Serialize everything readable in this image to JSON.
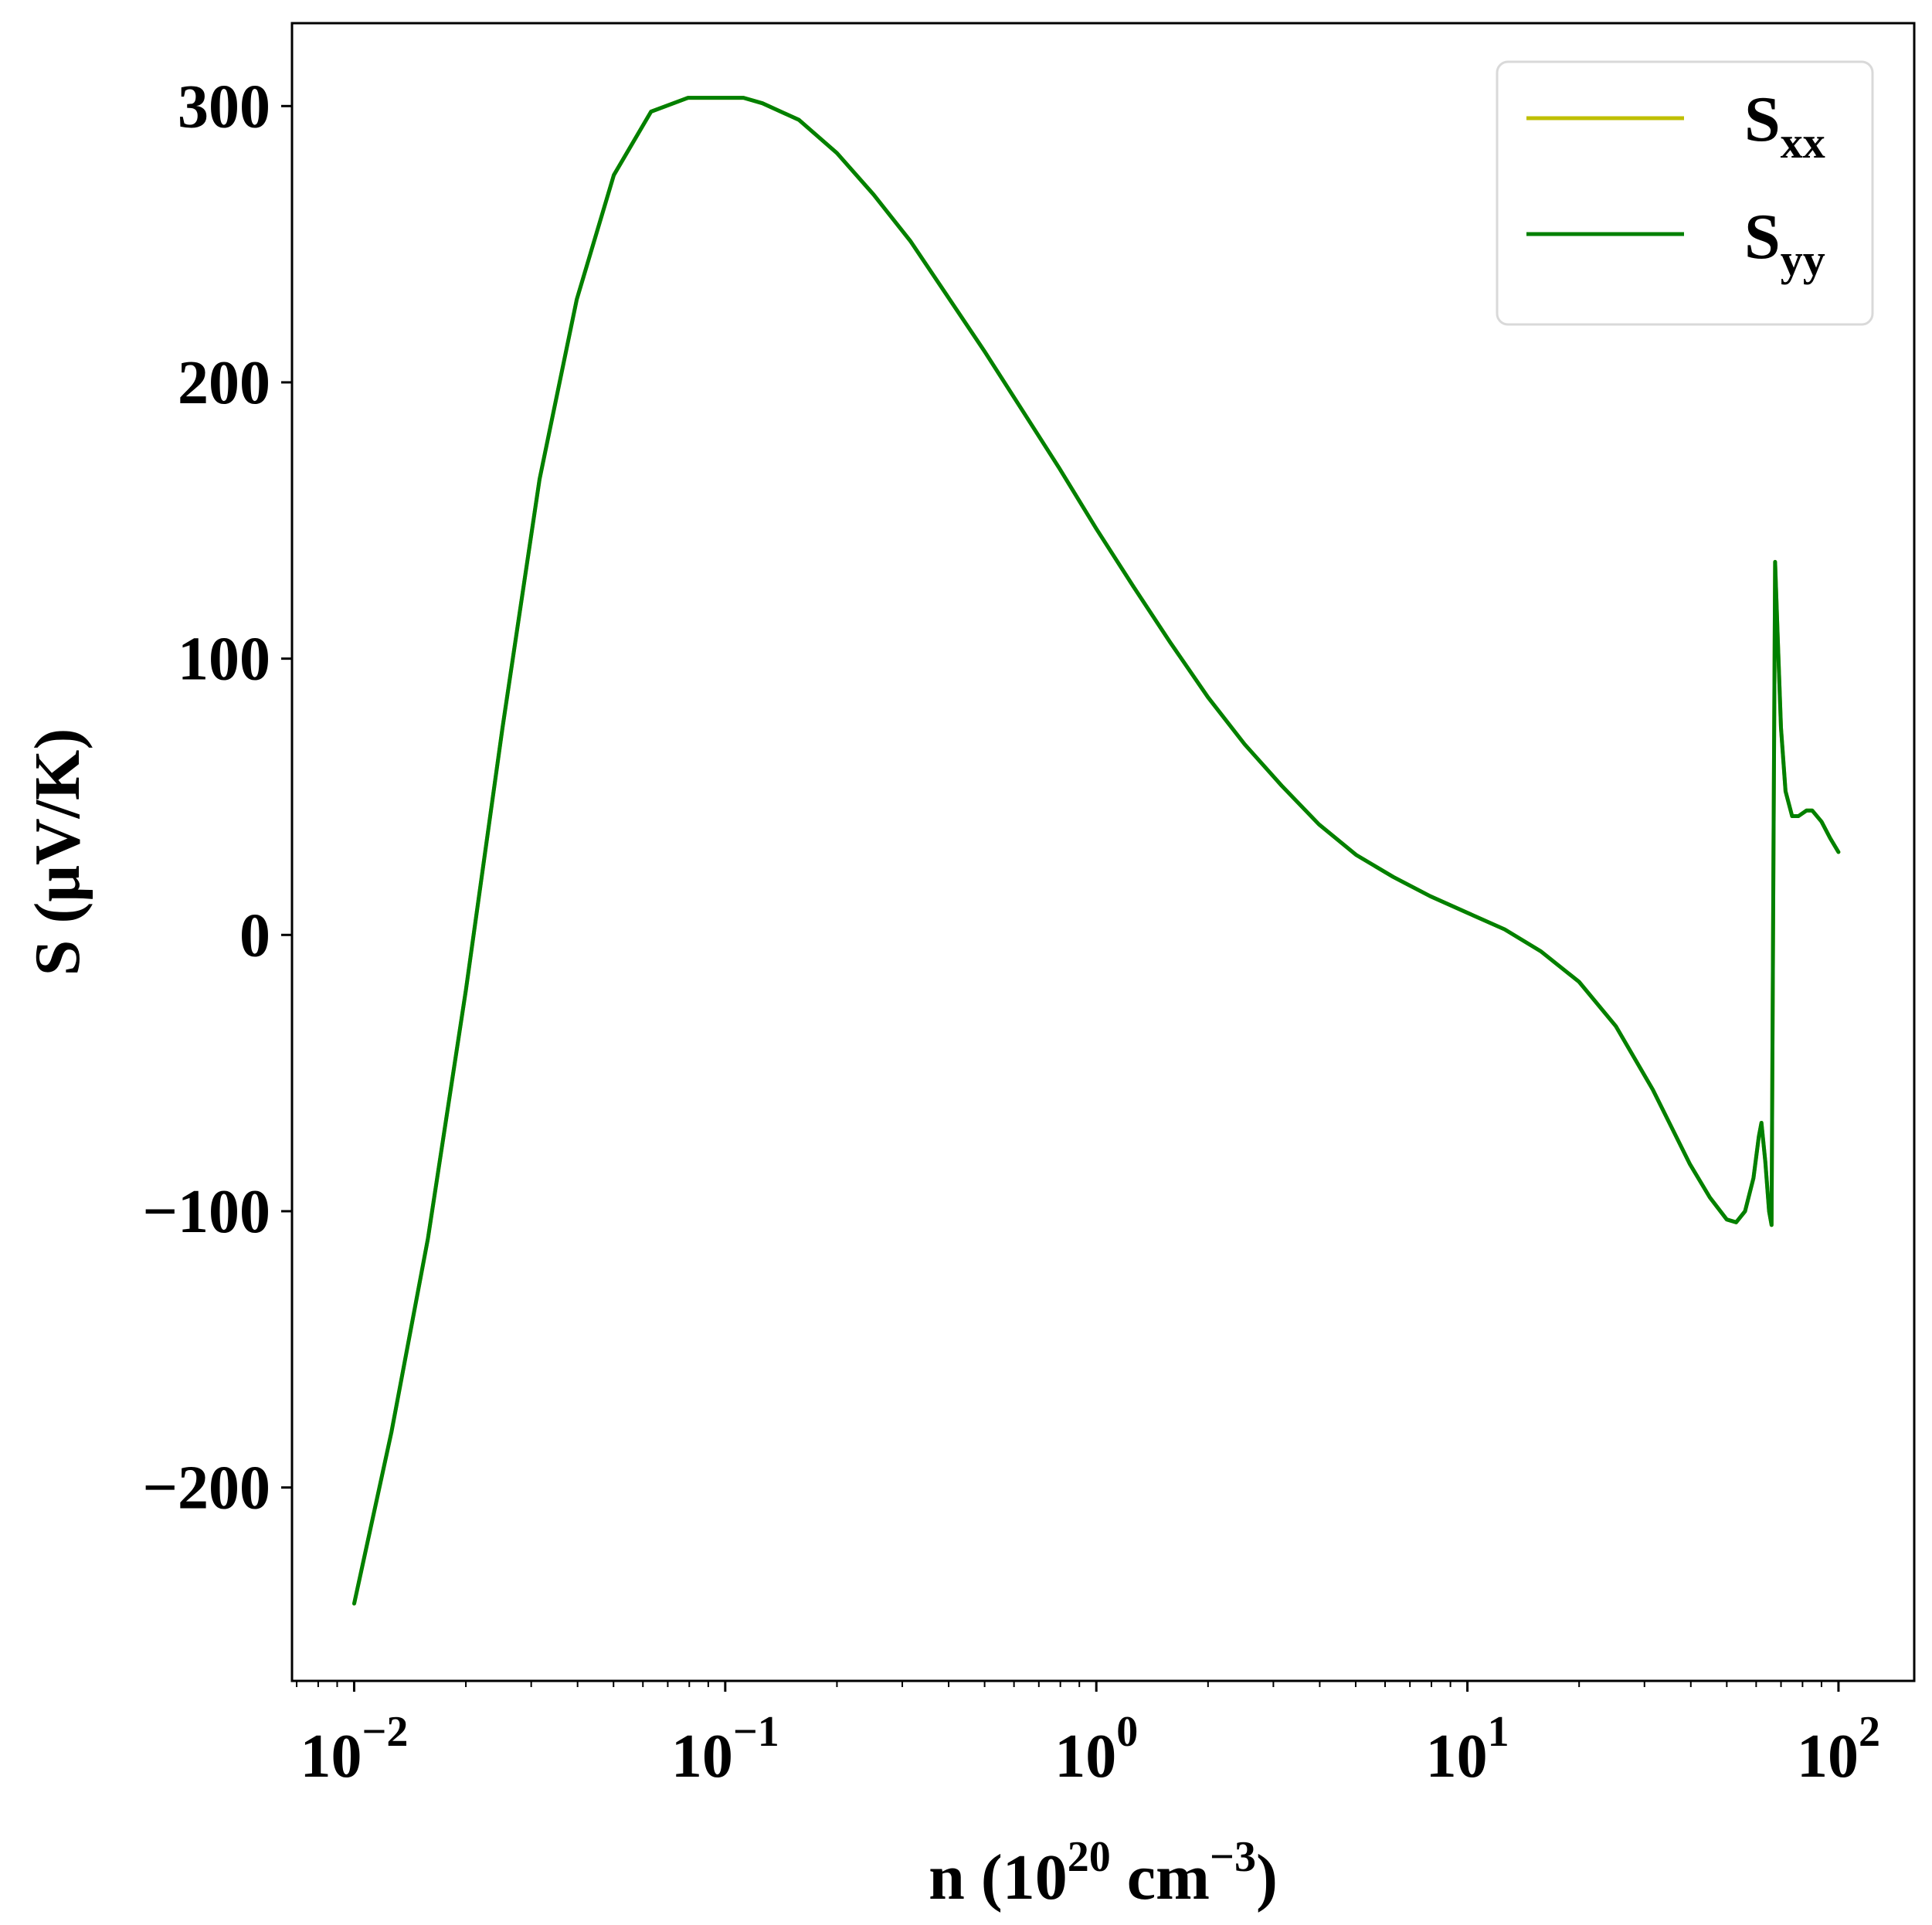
{
  "chart_data": {
    "type": "line",
    "xlabel": {
      "prefix": "n (10",
      "sup1": "20",
      "mid": " cm",
      "sup2": "−3",
      "suffix": ")"
    },
    "ylabel": "S (μV/K)",
    "xscale": "log",
    "xlim": [
      0.0068,
      160
    ],
    "ylim": [
      -270,
      330
    ],
    "grid": false,
    "legend_position": "top-right",
    "x_ticks": [
      {
        "base": "10",
        "exp": "−2",
        "value": 0.01
      },
      {
        "base": "10",
        "exp": "−1",
        "value": 0.1
      },
      {
        "base": "10",
        "exp": "0",
        "value": 1
      },
      {
        "base": "10",
        "exp": "1",
        "value": 10
      },
      {
        "base": "10",
        "exp": "2",
        "value": 100
      }
    ],
    "y_ticks": [
      {
        "label": "−200",
        "value": -200
      },
      {
        "label": "−100",
        "value": -100
      },
      {
        "label": "0",
        "value": 0
      },
      {
        "label": "100",
        "value": 100
      },
      {
        "label": "200",
        "value": 200
      },
      {
        "label": "300",
        "value": 300
      }
    ],
    "series": [
      {
        "name": {
          "main": "S",
          "sub": "xx"
        },
        "color": "#bfbf00",
        "x": [
          0.01,
          0.0126,
          0.0158,
          0.02,
          0.0251,
          0.0316,
          0.0398,
          0.0501,
          0.0631,
          0.0794,
          0.1,
          0.112,
          0.126,
          0.158,
          0.2,
          0.251,
          0.316,
          0.398,
          0.501,
          0.631,
          0.794,
          1.0,
          1.26,
          1.58,
          2.0,
          2.51,
          3.16,
          3.98,
          5.01,
          6.31,
          7.94,
          10.0,
          12.6,
          15.8,
          20.0,
          25.1,
          31.6,
          39.8,
          45.0,
          50.0,
          53.0,
          56.0,
          59.0,
          61.0,
          62.0,
          63.5,
          65.0,
          66.0,
          66.8,
          67.5,
          68.5,
          70.0,
          72.0,
          75.0,
          78.0,
          82.0,
          85.0,
          90.0,
          95.0,
          100.0
        ],
        "y": [
          -242,
          -180,
          -110,
          -20,
          75,
          165,
          230,
          275,
          298,
          303,
          303,
          303,
          301,
          295,
          283,
          268,
          251,
          231,
          211,
          190,
          169,
          147,
          126,
          106,
          86,
          69,
          54,
          40,
          29,
          21,
          14,
          8,
          2,
          -6,
          -17,
          -33,
          -56,
          -83,
          -95,
          -103,
          -104,
          -100,
          -88,
          -73,
          -68,
          -82,
          -100,
          -105,
          30,
          135,
          110,
          75,
          52,
          43,
          43,
          45,
          45,
          41,
          35,
          30
        ]
      },
      {
        "name": {
          "main": "S",
          "sub": "yy"
        },
        "color": "#008000",
        "x": [
          0.01,
          0.0126,
          0.0158,
          0.02,
          0.0251,
          0.0316,
          0.0398,
          0.0501,
          0.0631,
          0.0794,
          0.1,
          0.112,
          0.126,
          0.158,
          0.2,
          0.251,
          0.316,
          0.398,
          0.501,
          0.631,
          0.794,
          1.0,
          1.26,
          1.58,
          2.0,
          2.51,
          3.16,
          3.98,
          5.01,
          6.31,
          7.94,
          10.0,
          12.6,
          15.8,
          20.0,
          25.1,
          31.6,
          39.8,
          45.0,
          50.0,
          53.0,
          56.0,
          59.0,
          61.0,
          62.0,
          63.5,
          65.0,
          66.0,
          66.8,
          67.5,
          68.5,
          70.0,
          72.0,
          75.0,
          78.0,
          82.0,
          85.0,
          90.0,
          95.0,
          100.0
        ],
        "y": [
          -242,
          -180,
          -110,
          -20,
          75,
          165,
          230,
          275,
          298,
          303,
          303,
          303,
          301,
          295,
          283,
          268,
          251,
          231,
          211,
          190,
          169,
          147,
          126,
          106,
          86,
          69,
          54,
          40,
          29,
          21,
          14,
          8,
          2,
          -6,
          -17,
          -33,
          -56,
          -83,
          -95,
          -103,
          -104,
          -100,
          -88,
          -73,
          -68,
          -82,
          -100,
          -105,
          30,
          135,
          110,
          75,
          52,
          43,
          43,
          45,
          45,
          41,
          35,
          30
        ]
      }
    ]
  }
}
